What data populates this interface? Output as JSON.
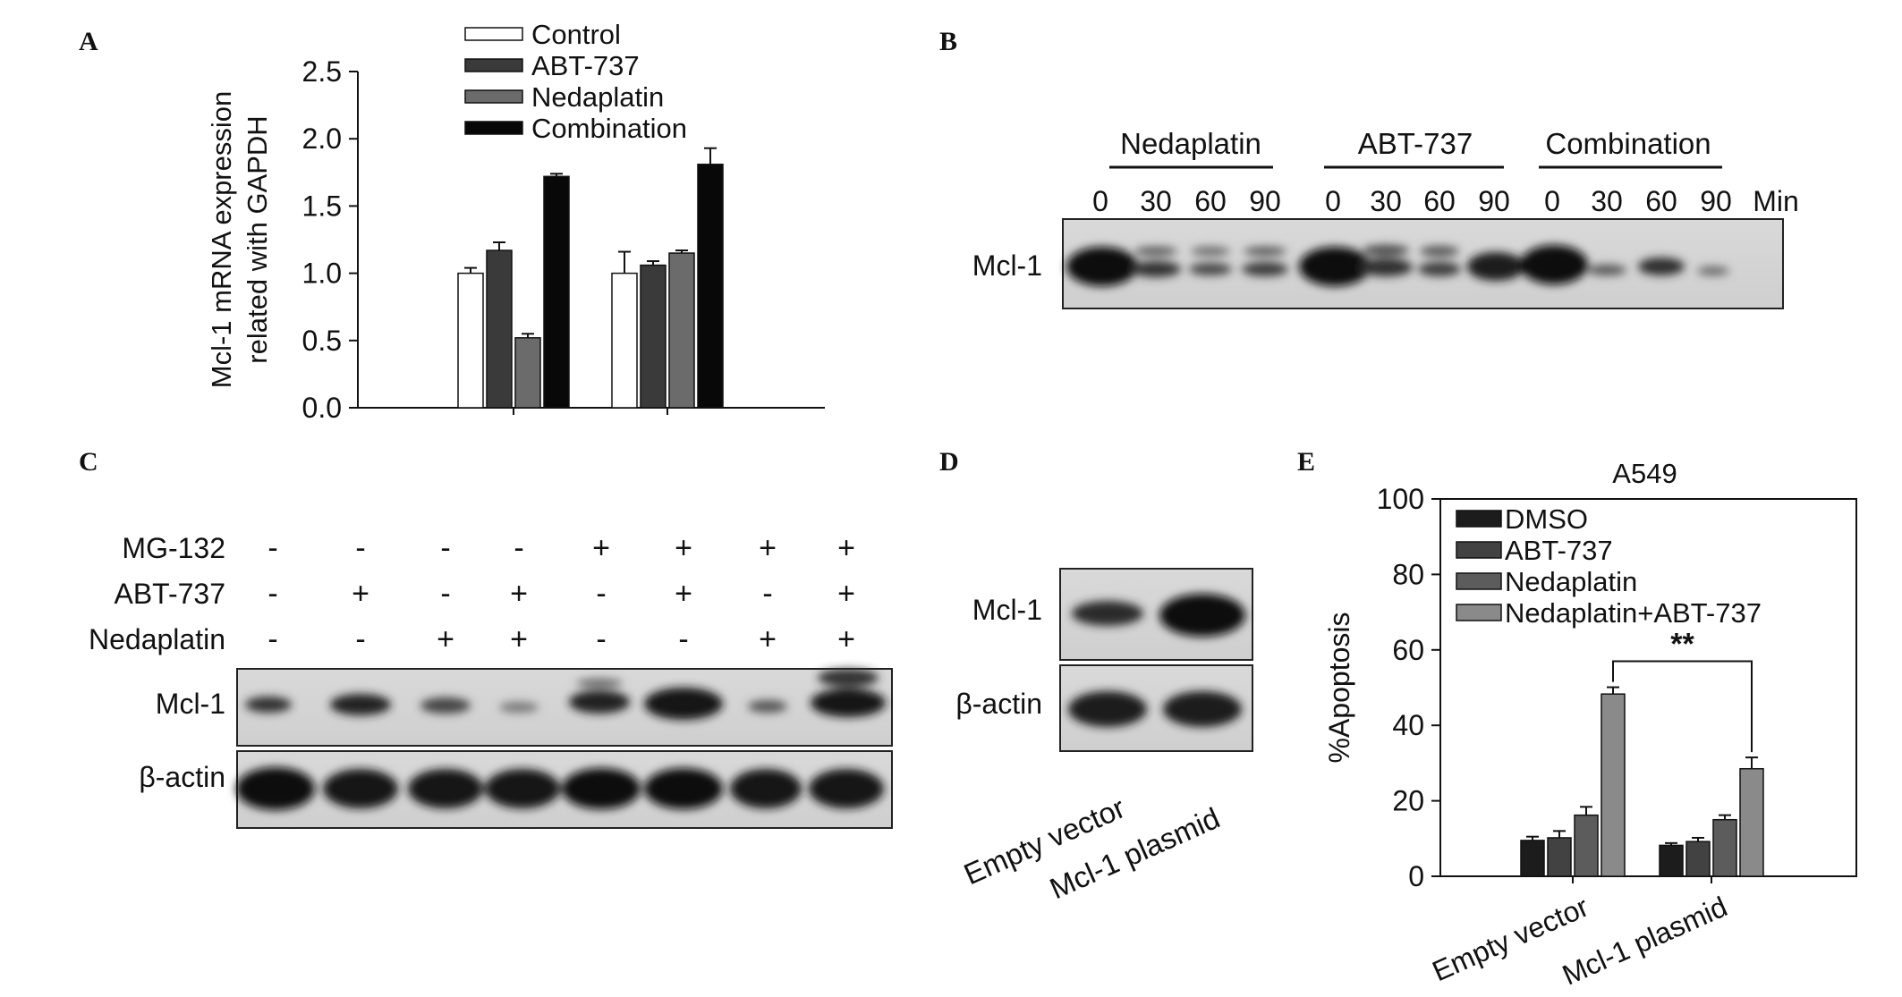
{
  "panel_labels": {
    "a": "A",
    "b": "B",
    "c": "C",
    "d": "D",
    "e": "E"
  },
  "chart_data": [
    {
      "type": "bar",
      "panel": "A",
      "title": "",
      "xlabel": "",
      "ylabel": "Mcl-1 mRNA expression\nrelated with GAPDH",
      "ylim": [
        0,
        2.5
      ],
      "yticks": [
        "0.0",
        "0.5",
        "1.0",
        "1.5",
        "2.0",
        "2.5"
      ],
      "categories": [
        "",
        ""
      ],
      "series": [
        {
          "name": "Control",
          "color": "#ffffff",
          "values": [
            1.0,
            1.0
          ],
          "errors": [
            0.04,
            0.16
          ]
        },
        {
          "name": "ABT-737",
          "color": "#3a3a3a",
          "values": [
            1.17,
            1.06
          ],
          "errors": [
            0.06,
            0.03
          ]
        },
        {
          "name": "Nedaplatin",
          "color": "#6b6b6b",
          "values": [
            0.52,
            1.15
          ],
          "errors": [
            0.03,
            0.02
          ]
        },
        {
          "name": "Combination",
          "color": "#080808",
          "values": [
            1.72,
            1.81
          ],
          "errors": [
            0.02,
            0.12
          ]
        }
      ],
      "legend": "top"
    },
    {
      "type": "bar",
      "panel": "E",
      "title": "A549",
      "xlabel": "",
      "ylabel": "%Apoptosis",
      "ylim": [
        0,
        100
      ],
      "yticks": [
        "0",
        "20",
        "40",
        "60",
        "80",
        "100"
      ],
      "categories": [
        "Empty vector",
        "Mcl-1 plasmid"
      ],
      "series": [
        {
          "name": "DMSO",
          "color": "#1c1c1c",
          "values": [
            9.5,
            8.2
          ],
          "errors": [
            1.0,
            0.6
          ]
        },
        {
          "name": "ABT-737",
          "color": "#424242",
          "values": [
            10.2,
            9.2
          ],
          "errors": [
            1.8,
            1.0
          ]
        },
        {
          "name": "Nedaplatin",
          "color": "#5c5c5c",
          "values": [
            16.2,
            15.0
          ],
          "errors": [
            2.2,
            1.2
          ]
        },
        {
          "name": "Nedaplatin+ABT-737",
          "color": "#8a8a8a",
          "values": [
            48.3,
            28.5
          ],
          "errors": [
            1.8,
            3.0
          ]
        }
      ],
      "annotation": "**",
      "legend": "top-left"
    }
  ],
  "blot_b": {
    "groups": [
      "Nedaplatin",
      "ABT-737",
      "Combination"
    ],
    "times": [
      "0",
      "30",
      "60",
      "90",
      "0",
      "30",
      "60",
      "90",
      "0",
      "30",
      "60",
      "90"
    ],
    "unit": "Min",
    "row_label": "Mcl-1"
  },
  "blot_c": {
    "conditions": [
      {
        "label": "MG-132",
        "signs": [
          "-",
          "-",
          "-",
          "-",
          "+",
          "+",
          "+",
          "+"
        ]
      },
      {
        "label": "ABT-737",
        "signs": [
          "-",
          "+",
          "-",
          "+",
          "-",
          "+",
          "-",
          "+"
        ]
      },
      {
        "label": "Nedaplatin",
        "signs": [
          "-",
          "-",
          "+",
          "+",
          "-",
          "-",
          "+",
          "+"
        ]
      }
    ],
    "row_labels": [
      "Mcl-1",
      "β-actin"
    ]
  },
  "blot_d": {
    "row_labels": [
      "Mcl-1",
      "β-actin"
    ],
    "lanes": [
      "Empty vector",
      "Mcl-1 plasmid"
    ]
  }
}
